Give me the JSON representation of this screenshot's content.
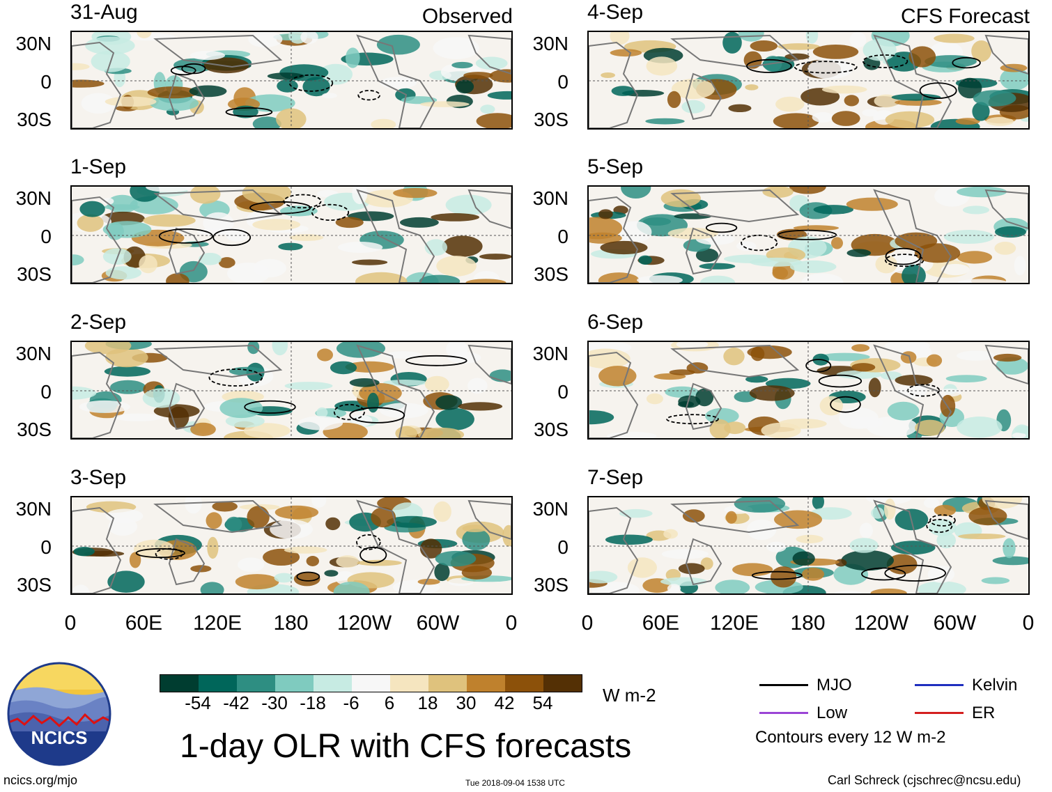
{
  "panels": {
    "left": [
      {
        "date": "31-Aug",
        "header": "Observed"
      },
      {
        "date": "1-Sep"
      },
      {
        "date": "2-Sep"
      },
      {
        "date": "3-Sep"
      }
    ],
    "right": [
      {
        "date": "4-Sep",
        "header": "CFS Forecast"
      },
      {
        "date": "5-Sep"
      },
      {
        "date": "6-Sep"
      },
      {
        "date": "7-Sep"
      }
    ]
  },
  "lat_labels": [
    "30N",
    "0",
    "30S"
  ],
  "lon_labels": [
    "0",
    "60E",
    "120E",
    "180",
    "120W",
    "60W",
    "0"
  ],
  "colorbar": {
    "colors": [
      "#003d30",
      "#00665a",
      "#2e8e82",
      "#7fcbbf",
      "#c7ebe3",
      "#f7f7f7",
      "#f5e5bf",
      "#dfc27d",
      "#bf812d",
      "#8c510a",
      "#543005"
    ],
    "ticks": [
      "-54",
      "-42",
      "-30",
      "-18",
      "-6",
      "6",
      "18",
      "30",
      "42",
      "54"
    ],
    "units": "W m-2"
  },
  "title": "1-day OLR with CFS forecasts",
  "legend": {
    "items": [
      {
        "label": "MJO",
        "color": "#000000"
      },
      {
        "label": "Kelvin",
        "color": "#1f2fbf"
      },
      {
        "label": "Low",
        "color": "#9b45d6"
      },
      {
        "label": "ER",
        "color": "#d42020"
      }
    ],
    "note": "Contours every 12 W m-2"
  },
  "logo_text": "NCICS",
  "footer": {
    "url": "ncics.org/mjo",
    "timestamp": "Tue 2018-09-04 1538 UTC",
    "author": "Carl Schreck (cjschrec@ncsu.edu)"
  }
}
